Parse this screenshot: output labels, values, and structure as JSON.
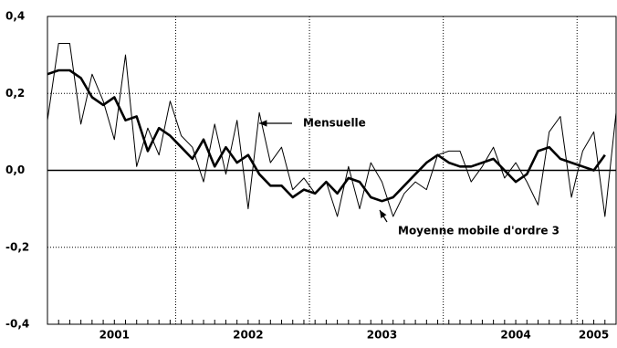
{
  "chart_data": {
    "type": "line",
    "categories": [
      null,
      null,
      null,
      null,
      null,
      null,
      "2001",
      null,
      null,
      null,
      null,
      null,
      null,
      null,
      null,
      null,
      null,
      null,
      "2002",
      null,
      null,
      null,
      null,
      null,
      null,
      null,
      null,
      null,
      null,
      null,
      "2003",
      null,
      null,
      null,
      null,
      null,
      null,
      null,
      null,
      null,
      null,
      null,
      "2004",
      null,
      null,
      null,
      null,
      null,
      null,
      "2005",
      null,
      null
    ],
    "series": [
      {
        "name": "Mensuelle",
        "color": "#000000",
        "width": 1,
        "values": [
          0.13,
          0.33,
          0.33,
          0.12,
          0.25,
          0.18,
          0.08,
          0.3,
          0.01,
          0.11,
          0.04,
          0.18,
          0.09,
          0.06,
          -0.03,
          0.12,
          -0.01,
          0.13,
          -0.1,
          0.15,
          0.02,
          0.06,
          -0.05,
          -0.02,
          -0.06,
          -0.03,
          -0.12,
          0.01,
          -0.1,
          0.02,
          -0.03,
          -0.12,
          -0.06,
          -0.03,
          -0.05,
          0.04,
          0.05,
          0.05,
          -0.03,
          0.01,
          0.06,
          -0.02,
          0.02,
          -0.03,
          -0.09,
          0.1,
          0.14,
          -0.07,
          0.05,
          0.1,
          -0.12,
          0.15
        ]
      },
      {
        "name": "Moyenne mobile d'ordre 3",
        "color": "#000000",
        "width": 2.6,
        "values": [
          0.25,
          0.26,
          0.26,
          0.24,
          0.19,
          0.17,
          0.19,
          0.13,
          0.14,
          0.05,
          0.11,
          0.09,
          0.06,
          0.03,
          0.08,
          0.01,
          0.06,
          0.02,
          0.04,
          -0.01,
          -0.04,
          -0.04,
          -0.07,
          -0.05,
          -0.06,
          -0.03,
          -0.06,
          -0.02,
          -0.03,
          -0.07,
          -0.08,
          -0.07,
          -0.04,
          -0.01,
          0.02,
          0.04,
          0.02,
          0.01,
          0.01,
          0.02,
          0.03,
          0.0,
          -0.03,
          -0.01,
          0.05,
          0.06,
          0.03,
          0.02,
          0.01,
          0.0,
          0.04,
          null
        ]
      }
    ],
    "ylim": [
      -0.4,
      0.4
    ],
    "yticks": [
      {
        "value": -0.4,
        "label": "-0,4"
      },
      {
        "value": -0.2,
        "label": "-0,2"
      },
      {
        "value": 0,
        "label": "0,0"
      },
      {
        "value": 0.2,
        "label": "0,2"
      },
      {
        "value": 0.4,
        "label": "0,4"
      }
    ],
    "grid": true
  }
}
